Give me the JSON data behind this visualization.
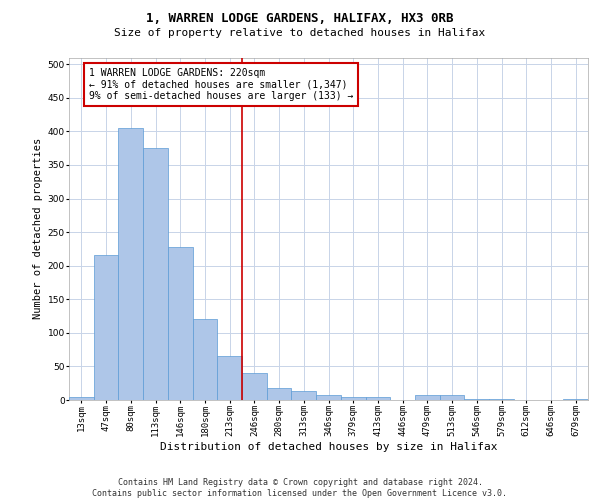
{
  "title_line1": "1, WARREN LODGE GARDENS, HALIFAX, HX3 0RB",
  "title_line2": "Size of property relative to detached houses in Halifax",
  "xlabel": "Distribution of detached houses by size in Halifax",
  "ylabel": "Number of detached properties",
  "bar_labels": [
    "13sqm",
    "47sqm",
    "80sqm",
    "113sqm",
    "146sqm",
    "180sqm",
    "213sqm",
    "246sqm",
    "280sqm",
    "313sqm",
    "346sqm",
    "379sqm",
    "413sqm",
    "446sqm",
    "479sqm",
    "513sqm",
    "546sqm",
    "579sqm",
    "612sqm",
    "646sqm",
    "679sqm"
  ],
  "bar_values": [
    4,
    216,
    405,
    375,
    228,
    120,
    65,
    40,
    18,
    13,
    7,
    5,
    5,
    0,
    7,
    7,
    2,
    1,
    0,
    0,
    2
  ],
  "bar_color": "#aec6e8",
  "bar_edge_color": "#5b9bd5",
  "vline_x_index": 6.5,
  "vline_color": "#cc0000",
  "annotation_text": "1 WARREN LODGE GARDENS: 220sqm\n← 91% of detached houses are smaller (1,347)\n9% of semi-detached houses are larger (133) →",
  "annotation_box_color": "#cc0000",
  "ylim": [
    0,
    510
  ],
  "yticks": [
    0,
    50,
    100,
    150,
    200,
    250,
    300,
    350,
    400,
    450,
    500
  ],
  "footer_line1": "Contains HM Land Registry data © Crown copyright and database right 2024.",
  "footer_line2": "Contains public sector information licensed under the Open Government Licence v3.0.",
  "background_color": "#ffffff",
  "grid_color": "#c8d4e8",
  "title1_fontsize": 9,
  "title2_fontsize": 8,
  "xlabel_fontsize": 8,
  "ylabel_fontsize": 7.5,
  "tick_fontsize": 6.5,
  "ann_fontsize": 7,
  "footer_fontsize": 6
}
